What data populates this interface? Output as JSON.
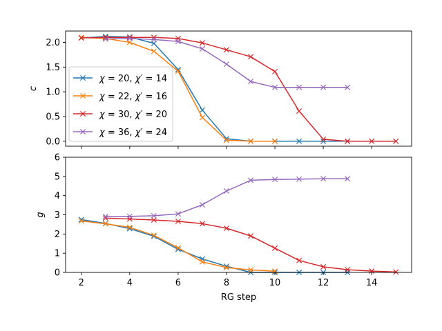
{
  "chart_data": [
    {
      "type": "line",
      "ylabel": "c",
      "xlabel": "",
      "xlim": [
        1.35,
        15.65
      ],
      "ylim": [
        -0.1,
        2.23
      ],
      "xticks": [
        2,
        4,
        6,
        8,
        10,
        12,
        14
      ],
      "yticks": [
        0.0,
        0.5,
        1.0,
        1.5,
        2.0
      ],
      "ytick_labels": [
        "0.0",
        "0.5",
        "1.0",
        "1.5",
        "2.0"
      ],
      "legend_position": "center-left",
      "series": [
        {
          "name": "χ = 20, χ′ = 14",
          "color": "#1f77b4",
          "x": [
            2,
            3,
            4,
            5,
            6,
            7,
            8,
            9,
            10,
            11,
            12,
            13
          ],
          "y": [
            2.09,
            2.12,
            2.11,
            1.98,
            1.45,
            0.63,
            0.05,
            0.0,
            0.0,
            0.0,
            0.0,
            0.0
          ]
        },
        {
          "name": "χ = 22, χ′ = 16",
          "color": "#ff7f0e",
          "x": [
            2,
            3,
            4,
            5,
            6,
            7,
            8,
            9,
            10
          ],
          "y": [
            2.1,
            2.08,
            2.0,
            1.82,
            1.42,
            0.48,
            0.02,
            0.0,
            0.0
          ]
        },
        {
          "name": "χ = 30, χ′ = 20",
          "color": "#d62728",
          "x": [
            2,
            3,
            4,
            5,
            6,
            7,
            8,
            9,
            10,
            11,
            12,
            13,
            14,
            15
          ],
          "y": [
            2.09,
            2.1,
            2.1,
            2.1,
            2.08,
            1.99,
            1.85,
            1.71,
            1.41,
            0.61,
            0.04,
            0.0,
            0.0,
            0.0
          ]
        },
        {
          "name": "χ = 36, χ′ = 24",
          "color": "#9467bd",
          "x": [
            3,
            4,
            5,
            6,
            7,
            8,
            9,
            10,
            11,
            12,
            13
          ],
          "y": [
            2.07,
            2.08,
            2.06,
            2.02,
            1.87,
            1.56,
            1.21,
            1.09,
            1.09,
            1.09,
            1.09
          ]
        }
      ]
    },
    {
      "type": "line",
      "ylabel": "g",
      "xlabel": "RG step",
      "xlim": [
        1.35,
        15.65
      ],
      "ylim": [
        0,
        6
      ],
      "xticks": [
        2,
        4,
        6,
        8,
        10,
        12,
        14
      ],
      "yticks": [
        0,
        1,
        2,
        3,
        4,
        5,
        6
      ],
      "ytick_labels": [
        "0",
        "1",
        "2",
        "3",
        "4",
        "5",
        "6"
      ],
      "series": [
        {
          "name": "χ = 20, χ′ = 14",
          "color": "#1f77b4",
          "x": [
            2,
            3,
            4,
            5,
            6,
            7,
            8,
            9,
            10,
            11,
            12,
            13
          ],
          "y": [
            2.75,
            2.55,
            2.28,
            1.88,
            1.2,
            0.7,
            0.32,
            0.0,
            0.0,
            0.0,
            0.0,
            0.0
          ]
        },
        {
          "name": "χ = 22, χ′ = 16",
          "color": "#ff7f0e",
          "x": [
            2,
            3,
            4,
            5,
            6,
            7,
            8,
            9,
            10
          ],
          "y": [
            2.68,
            2.53,
            2.35,
            1.93,
            1.28,
            0.55,
            0.25,
            0.13,
            0.06
          ]
        },
        {
          "name": "χ = 30, χ′ = 20",
          "color": "#d62728",
          "x": [
            3,
            4,
            5,
            6,
            7,
            8,
            9,
            10,
            11,
            12,
            13,
            14,
            15
          ],
          "y": [
            2.83,
            2.78,
            2.73,
            2.66,
            2.54,
            2.3,
            1.9,
            1.26,
            0.62,
            0.29,
            0.14,
            0.07,
            0.02
          ]
        },
        {
          "name": "χ = 36, χ′ = 24",
          "color": "#9467bd",
          "x": [
            3,
            4,
            5,
            6,
            7,
            8,
            9,
            10,
            11,
            12,
            13
          ],
          "y": [
            2.91,
            2.92,
            2.95,
            3.05,
            3.52,
            4.24,
            4.8,
            4.84,
            4.86,
            4.88,
            4.88
          ]
        }
      ]
    }
  ],
  "legend": [
    {
      "chi": "χ",
      "chi_value": "20",
      "chi_prime": "χ′",
      "chi_prime_value": "14"
    },
    {
      "chi": "χ",
      "chi_value": "22",
      "chi_prime": "χ′",
      "chi_prime_value": "16"
    },
    {
      "chi": "χ",
      "chi_value": "30",
      "chi_prime": "χ′",
      "chi_prime_value": "20"
    },
    {
      "chi": "χ",
      "chi_value": "36",
      "chi_prime": "χ′",
      "chi_prime_value": "24"
    }
  ]
}
